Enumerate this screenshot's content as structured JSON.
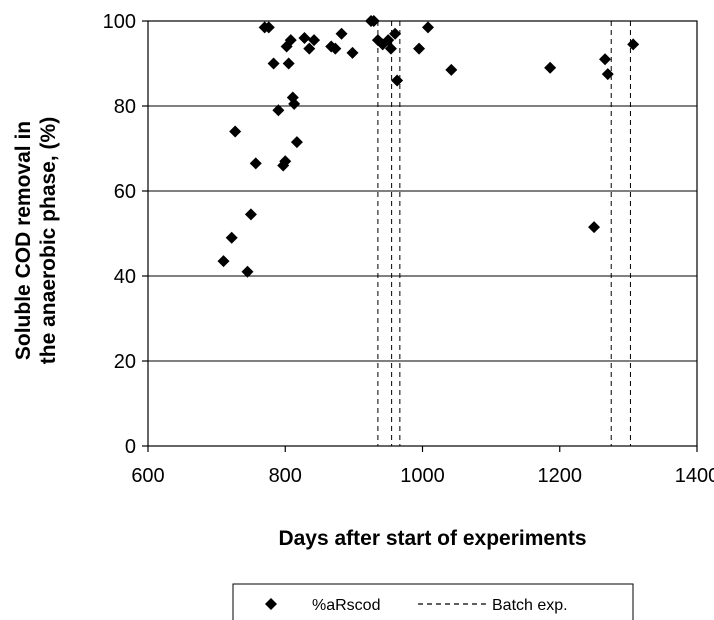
{
  "chart_data": {
    "type": "scatter",
    "xlabel": "Days after start of experiments",
    "ylabel_line1": "Soluble COD removal in",
    "ylabel_line2": "the anaerobic phase, (%)",
    "xlim": [
      600,
      1400
    ],
    "ylim": [
      0,
      100
    ],
    "x_ticks": [
      "600",
      "800",
      "1000",
      "1200",
      "1400"
    ],
    "y_ticks": [
      "0",
      "20",
      "40",
      "60",
      "80",
      "100"
    ],
    "grid": "horizontal",
    "legend_position": "bottom",
    "series": [
      {
        "name": "%aRscod",
        "marker": "diamond",
        "color": "#000000",
        "points": [
          [
            710,
            43.5
          ],
          [
            722,
            49
          ],
          [
            727,
            74
          ],
          [
            745,
            41
          ],
          [
            750,
            54.5
          ],
          [
            757,
            66.5
          ],
          [
            770,
            98.5
          ],
          [
            776,
            98.5
          ],
          [
            783,
            90
          ],
          [
            790,
            79
          ],
          [
            797,
            66
          ],
          [
            800,
            67
          ],
          [
            802,
            94
          ],
          [
            805,
            90
          ],
          [
            808,
            95.5
          ],
          [
            811,
            82
          ],
          [
            813,
            80.5
          ],
          [
            817,
            71.5
          ],
          [
            828,
            96
          ],
          [
            835,
            93.5
          ],
          [
            842,
            95.5
          ],
          [
            867,
            94
          ],
          [
            873,
            93.5
          ],
          [
            882,
            97
          ],
          [
            898,
            92.5
          ],
          [
            925,
            100
          ],
          [
            929,
            100
          ],
          [
            935,
            95.5
          ],
          [
            942,
            94.5
          ],
          [
            950,
            95.5
          ],
          [
            954,
            93.5
          ],
          [
            960,
            97
          ],
          [
            963,
            86
          ],
          [
            995,
            93.5
          ],
          [
            1008,
            98.5
          ],
          [
            1042,
            88.5
          ],
          [
            1186,
            89
          ],
          [
            1250,
            51.5
          ],
          [
            1266,
            91
          ],
          [
            1270,
            87.5
          ],
          [
            1307,
            94.5
          ]
        ]
      }
    ],
    "batch_lines": {
      "name": "Batch exp.",
      "style": "dashed",
      "x": [
        935,
        955,
        967,
        1275,
        1303
      ]
    }
  }
}
